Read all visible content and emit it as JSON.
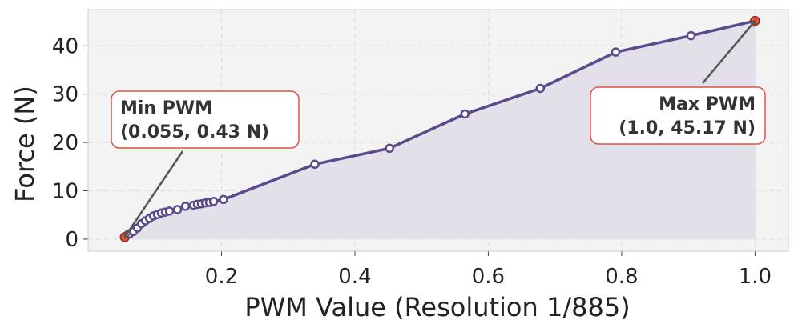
{
  "chart_data": {
    "type": "line",
    "xlabel": "PWM Value (Resolution 1/885)",
    "ylabel": "Force (N)",
    "xlim": [
      0.0,
      1.05
    ],
    "ylim": [
      -2.5,
      47.5
    ],
    "xticks": [
      0.2,
      0.4,
      0.6,
      0.8,
      1.0
    ],
    "xtick_labels": [
      "0.2",
      "0.4",
      "0.6",
      "0.8",
      "1.0"
    ],
    "yticks": [
      0,
      10,
      20,
      30,
      40
    ],
    "ytick_labels": [
      "0",
      "10",
      "20",
      "30",
      "40"
    ],
    "grid": true,
    "fill_under": true,
    "series": [
      {
        "x": [
          0.055,
          0.062,
          0.068,
          0.074,
          0.08,
          0.086,
          0.092,
          0.098,
          0.104,
          0.11,
          0.116,
          0.122,
          0.134,
          0.146,
          0.158,
          0.164,
          0.17,
          0.176,
          0.182,
          0.188,
          0.203,
          0.34,
          0.452,
          0.565,
          0.678,
          0.791,
          0.904,
          1.0
        ],
        "y": [
          0.43,
          1.1,
          1.6,
          2.3,
          3.2,
          3.8,
          4.3,
          4.8,
          5.1,
          5.4,
          5.6,
          5.8,
          6.1,
          6.8,
          7.0,
          7.2,
          7.3,
          7.5,
          7.6,
          7.8,
          8.2,
          15.5,
          18.8,
          25.9,
          31.2,
          38.7,
          42.1,
          45.17
        ]
      }
    ],
    "annotations": [
      {
        "line1": "Min PWM",
        "line2": "(0.055, 0.43 N)",
        "x": 0.055,
        "y": 0.43
      },
      {
        "line1": "Max PWM",
        "line2": "(1.0, 45.17 N)",
        "x": 1.0,
        "y": 45.17
      }
    ],
    "colors": {
      "line": "#5b4a8b",
      "marker_fill": "#ffffff",
      "fill": "#e3e0ea",
      "highlight": "#e0523c",
      "plot_bg": "#f3f3f3",
      "grid": "#dcdcdc",
      "spine": "#cccccc",
      "arrow": "#555555",
      "annot_box_border": "#e0523c"
    }
  }
}
